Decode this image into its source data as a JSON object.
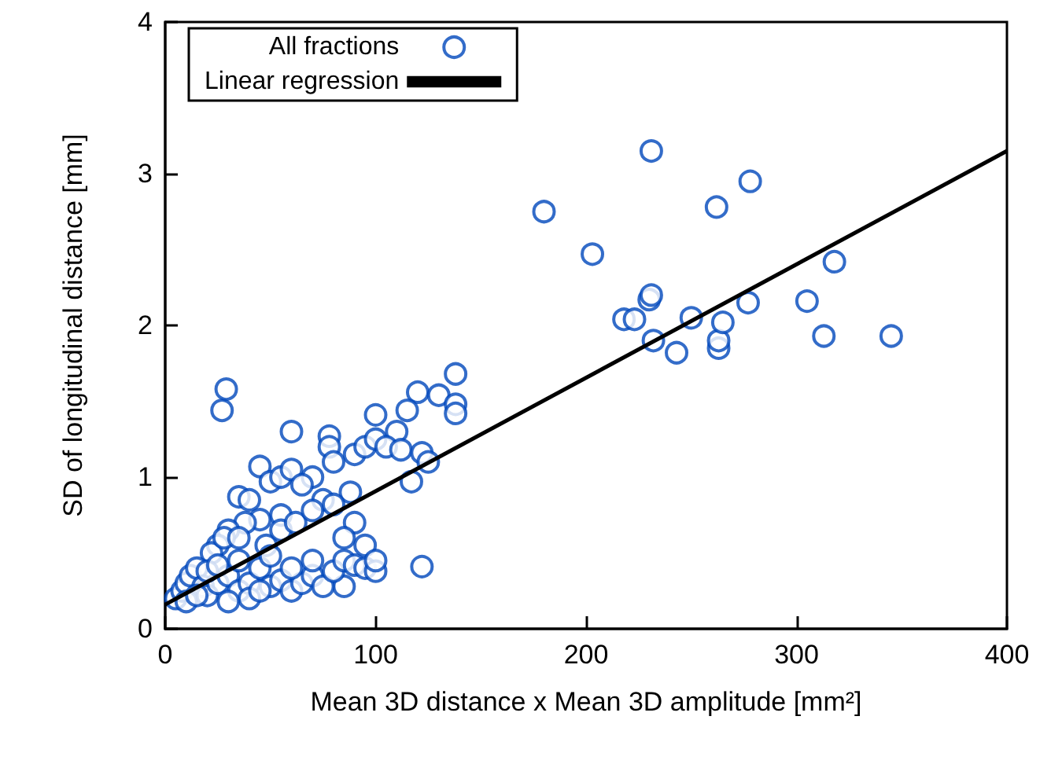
{
  "chart_data": {
    "type": "scatter",
    "xlabel": "Mean 3D distance x Mean 3D amplitude [mm²]",
    "ylabel": "SD of longitudinal distance [mm]",
    "xlim": [
      0,
      400
    ],
    "xticks": [
      0,
      100,
      200,
      300,
      400
    ],
    "ylim": [
      0,
      4
    ],
    "yticks": [
      0,
      1,
      2,
      3,
      4
    ],
    "grid": false,
    "legend": "top left",
    "marker": "circle",
    "series": [
      {
        "name": "All fractions",
        "color": "#0047bb",
        "x": [
          180,
          203,
          231,
          230,
          231,
          218,
          223,
          232,
          243,
          250,
          262,
          263,
          263,
          265,
          278,
          277,
          305,
          313,
          318,
          345,
          27,
          29,
          60,
          122,
          85,
          120,
          130,
          138,
          138,
          138,
          115,
          100,
          110,
          117,
          78,
          78,
          45,
          35,
          50,
          55,
          40,
          60,
          70,
          80,
          90,
          95,
          100,
          105,
          112,
          122,
          125,
          88,
          75,
          65,
          55,
          45,
          38,
          30,
          25,
          22,
          28,
          35,
          48,
          55,
          62,
          70,
          80,
          90,
          95,
          85,
          5,
          8,
          10,
          12,
          15,
          18,
          20,
          25,
          30,
          35,
          40,
          45,
          50,
          55,
          60,
          65,
          70,
          75,
          80,
          85,
          90,
          95,
          100,
          100,
          70,
          60,
          50,
          40,
          30,
          20,
          10,
          15,
          25,
          35,
          45
        ],
        "values": [
          2.75,
          2.47,
          3.15,
          2.17,
          2.2,
          2.04,
          2.04,
          1.9,
          1.82,
          2.05,
          2.78,
          1.85,
          1.9,
          2.02,
          2.95,
          2.15,
          2.16,
          1.93,
          2.42,
          1.93,
          1.44,
          1.58,
          1.3,
          0.41,
          0.28,
          1.56,
          1.54,
          1.68,
          1.48,
          1.42,
          1.44,
          1.41,
          1.3,
          0.97,
          1.27,
          1.2,
          1.07,
          0.87,
          0.97,
          1.0,
          0.85,
          1.05,
          1.0,
          1.1,
          1.15,
          1.2,
          1.25,
          1.2,
          1.18,
          1.16,
          1.1,
          0.9,
          0.85,
          0.95,
          0.75,
          0.72,
          0.7,
          0.65,
          0.55,
          0.5,
          0.6,
          0.6,
          0.55,
          0.65,
          0.7,
          0.78,
          0.82,
          0.7,
          0.55,
          0.6,
          0.2,
          0.25,
          0.3,
          0.35,
          0.4,
          0.28,
          0.22,
          0.3,
          0.35,
          0.25,
          0.3,
          0.4,
          0.28,
          0.32,
          0.25,
          0.3,
          0.35,
          0.28,
          0.38,
          0.45,
          0.42,
          0.4,
          0.38,
          0.45,
          0.45,
          0.4,
          0.48,
          0.2,
          0.18,
          0.38,
          0.18,
          0.22,
          0.42,
          0.45,
          0.25
        ]
      },
      {
        "name": "Linear regression",
        "type": "line",
        "marker": "none",
        "color": "#000000",
        "x": [
          0,
          400
        ],
        "values": [
          0.16,
          3.15
        ]
      }
    ]
  }
}
